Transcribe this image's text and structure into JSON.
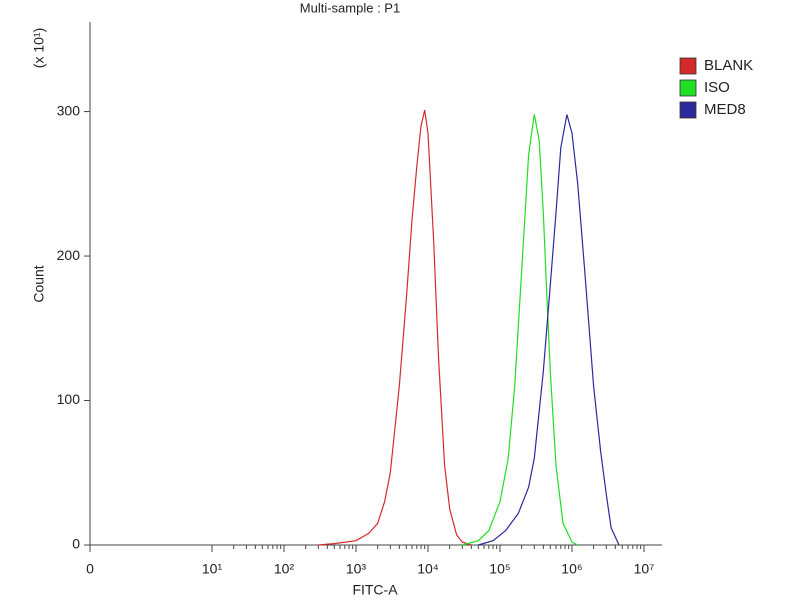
{
  "chart_data": {
    "type": "line",
    "title": "Multi-sample : P1",
    "x_label": "FITC-A",
    "y_label": "Count",
    "y_multiplier": "(x 10¹)",
    "xscale": "biexponential",
    "xlim": [
      0,
      17800000
    ],
    "xticks": [
      0,
      {
        "value": 10,
        "label": "10¹"
      },
      {
        "value": 100,
        "label": "10²"
      },
      {
        "value": 1000,
        "label": "10³"
      },
      {
        "value": 10000,
        "label": "10⁴"
      },
      {
        "value": 100000,
        "label": "10⁵"
      },
      {
        "value": 1000000,
        "label": "10⁶"
      },
      {
        "value": 10000000,
        "label": "10⁷"
      }
    ],
    "ylim": [
      0,
      362
    ],
    "yticks": [
      0,
      100,
      200,
      300
    ],
    "legend": "right",
    "series": [
      {
        "name": "BLANK",
        "color": "#d42a2a",
        "x": [
          300,
          500,
          1000,
          1500,
          2000,
          2500,
          3000,
          4000,
          5000,
          6000,
          7000,
          8000,
          9000,
          10000,
          12000,
          14000,
          17000,
          20000,
          25000,
          30000,
          40000
        ],
        "values": [
          0,
          1,
          3,
          8,
          15,
          30,
          50,
          110,
          170,
          225,
          262,
          290,
          301,
          285,
          210,
          130,
          55,
          25,
          7,
          2,
          0
        ]
      },
      {
        "name": "ISO",
        "color": "#22dd22",
        "x": [
          30000,
          50000,
          70000,
          100000,
          130000,
          160000,
          200000,
          250000,
          300000,
          350000,
          400000,
          450000,
          500000,
          600000,
          750000,
          1000000,
          1200000
        ],
        "values": [
          0,
          3,
          10,
          30,
          60,
          110,
          190,
          270,
          298,
          280,
          230,
          170,
          120,
          55,
          15,
          2,
          0
        ]
      },
      {
        "name": "MED8",
        "color": "#2a2a9a",
        "x": [
          50000,
          80000,
          120000,
          180000,
          250000,
          300000,
          400000,
          500000,
          600000,
          700000,
          850000,
          1000000,
          1200000,
          1500000,
          2000000,
          2500000,
          3000000,
          3500000,
          4500000
        ],
        "values": [
          0,
          3,
          10,
          22,
          40,
          60,
          120,
          180,
          230,
          275,
          298,
          285,
          250,
          190,
          110,
          65,
          35,
          12,
          0
        ]
      }
    ]
  }
}
